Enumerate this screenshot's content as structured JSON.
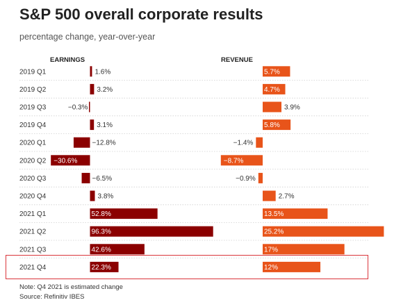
{
  "title": "S&P 500 overall corporate results",
  "subtitle": "percentage change, year-over-year",
  "note": "Note: Q4 2021 is estimated change",
  "source": "Source: Refinitiv IBES",
  "colors": {
    "earnings": "#8b0000",
    "revenue": "#e8541a",
    "highlight": "#d9343a",
    "grid": "#cfcfcf"
  },
  "chart_data": {
    "type": "bar",
    "categories": [
      "2019 Q1",
      "2019 Q2",
      "2019 Q3",
      "2019 Q4",
      "2020 Q1",
      "2020 Q2",
      "2020 Q3",
      "2020 Q4",
      "2021 Q1",
      "2021 Q2",
      "2021 Q3",
      "2021 Q4"
    ],
    "series": [
      {
        "name": "EARNINGS",
        "values": [
          1.6,
          3.2,
          -0.3,
          3.1,
          -12.8,
          -30.6,
          -6.5,
          3.8,
          52.8,
          96.3,
          42.6,
          22.3
        ],
        "labels": [
          "1.6%",
          "3.2%",
          "−0.3%",
          "3.1%",
          "−12.8%",
          "−30.6%",
          "−6.5%",
          "3.8%",
          "52.8%",
          "96.3%",
          "42.6%",
          "22.3%"
        ]
      },
      {
        "name": "REVENUE",
        "values": [
          5.7,
          4.7,
          3.9,
          5.8,
          -1.4,
          -8.7,
          -0.9,
          2.7,
          13.5,
          25.2,
          17,
          12
        ],
        "labels": [
          "5.7%",
          "4.7%",
          "3.9%",
          "5.8%",
          "−1.4%",
          "−8.7%",
          "−0.9%",
          "2.7%",
          "13.5%",
          "25.2%",
          "17%",
          "12%"
        ]
      }
    ],
    "highlighted_category": "2021 Q4"
  }
}
